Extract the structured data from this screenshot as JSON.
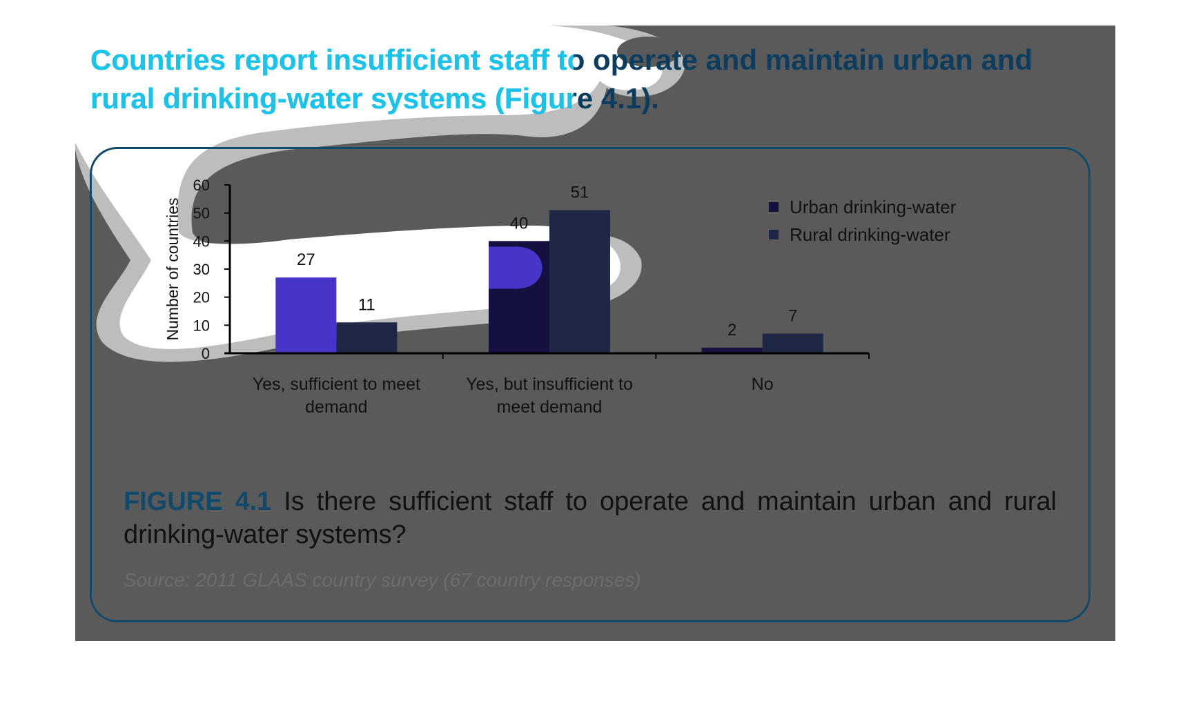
{
  "heading": "Countries report insufficient staff to operate and maintain urban and rural drinking-water systems (Figure 4.1).",
  "caption": {
    "figure_number": "FIGURE 4.1",
    "text": "Is there sufficient staff to operate and maintain urban and rural drinking-water systems?"
  },
  "source": "Source: 2011 GLAAS country survey (67 country responses)",
  "colors": {
    "urban": "#14103f",
    "rural": "#1e2745",
    "urban_highlight": "#4734c9",
    "heading": "#0d3d5e",
    "accent": "#16c5ee"
  },
  "chart_data": {
    "type": "bar",
    "ylabel": "Number of countries",
    "ylim": [
      0,
      60
    ],
    "yticks": [
      0,
      10,
      20,
      30,
      40,
      50,
      60
    ],
    "categories": [
      "Yes, sufficient to meet demand",
      "Yes, but insufficient to meet demand",
      "No"
    ],
    "category_lines": [
      [
        "Yes, sufficient to meet",
        "demand"
      ],
      [
        "Yes, but insufficient to",
        "meet demand"
      ],
      [
        "No"
      ]
    ],
    "series": [
      {
        "name": "Urban drinking-water",
        "values": [
          27,
          40,
          2
        ]
      },
      {
        "name": "Rural drinking-water",
        "values": [
          11,
          51,
          7
        ]
      }
    ],
    "legend_position": "top-right",
    "grid": false
  }
}
